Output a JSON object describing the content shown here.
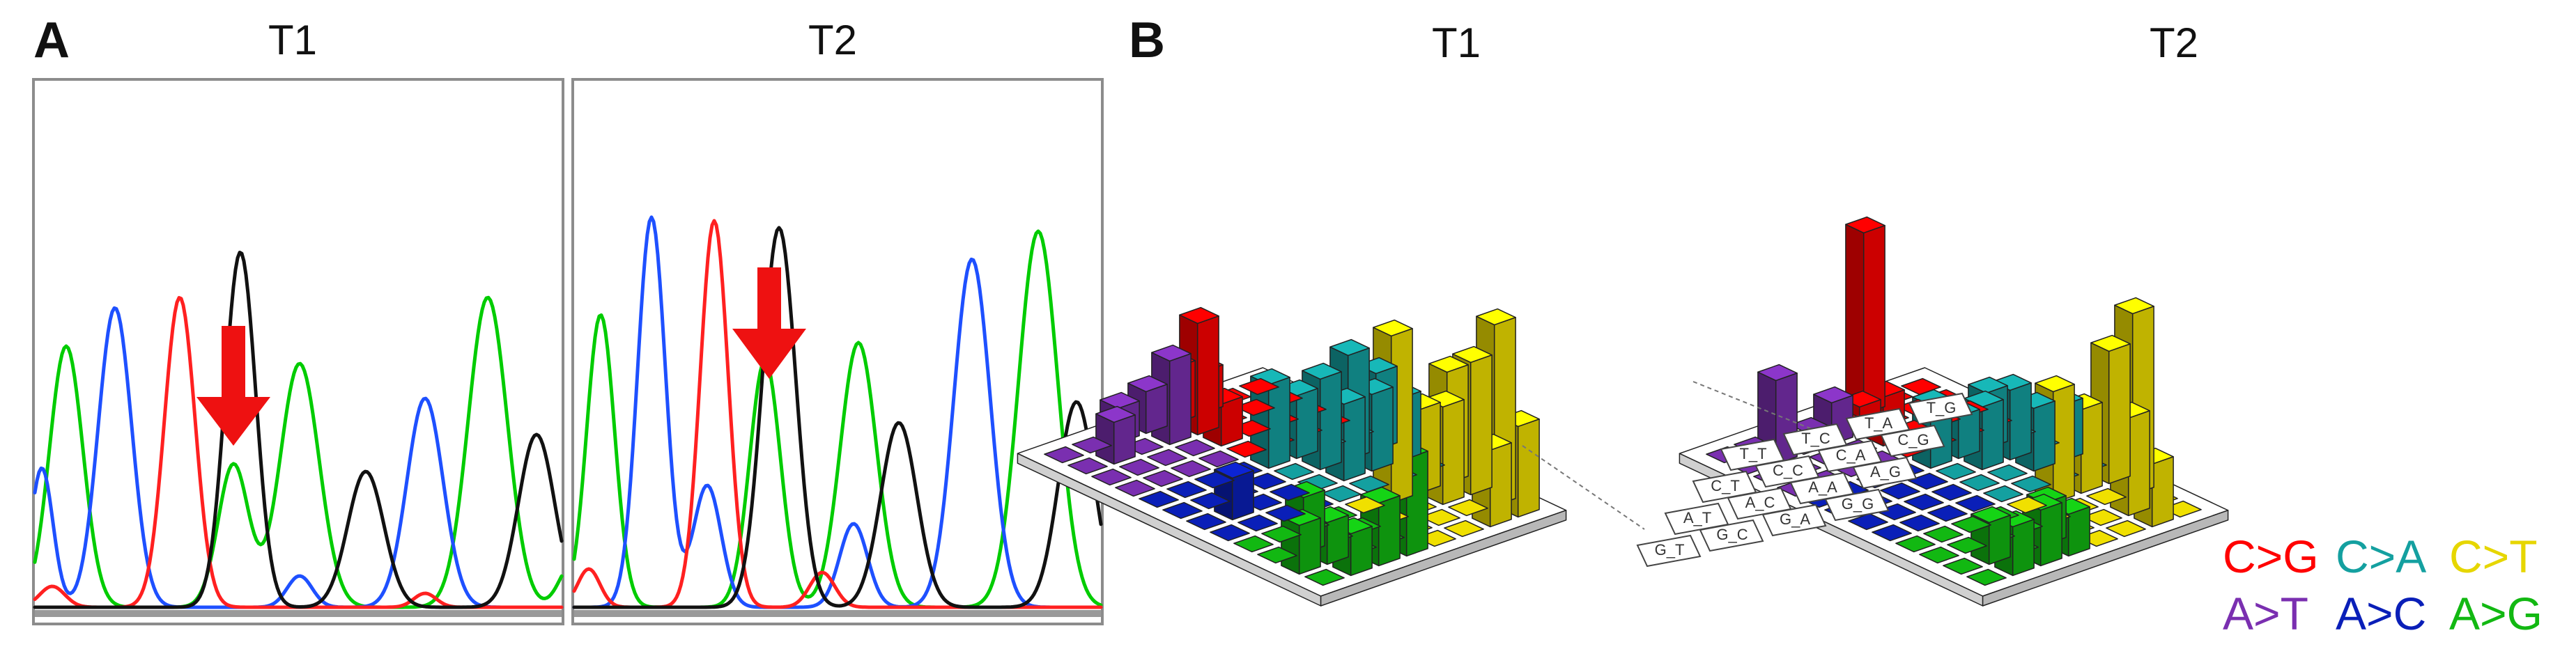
{
  "panel_a": {
    "letter": "A",
    "titles": [
      "T1",
      "T2"
    ]
  },
  "panel_b": {
    "letter": "B",
    "titles": [
      "T1",
      "T2"
    ],
    "cell_labels": [
      "T_G",
      "T_A",
      "C_G",
      "T_C",
      "C_A",
      "A_G",
      "T_T",
      "C_C",
      "A_A",
      "G_G",
      "C_T",
      "A_C",
      "G_A",
      "A_T",
      "G_C",
      "G_T"
    ]
  },
  "legend": [
    {
      "label": "C>G",
      "color": "#ff0000"
    },
    {
      "label": "C>A",
      "color": "#14a0a0"
    },
    {
      "label": "C>T",
      "color": "#f0e000"
    },
    {
      "label": "A>T",
      "color": "#7a2fb0"
    },
    {
      "label": "A>C",
      "color": "#0a1fb8"
    },
    {
      "label": "A>G",
      "color": "#12b812"
    }
  ],
  "colors": {
    "trace_A": "#00cc00",
    "trace_C": "#1e50ff",
    "trace_G": "#111111",
    "trace_T": "#ff2020",
    "arrow": "#ee1111"
  }
}
